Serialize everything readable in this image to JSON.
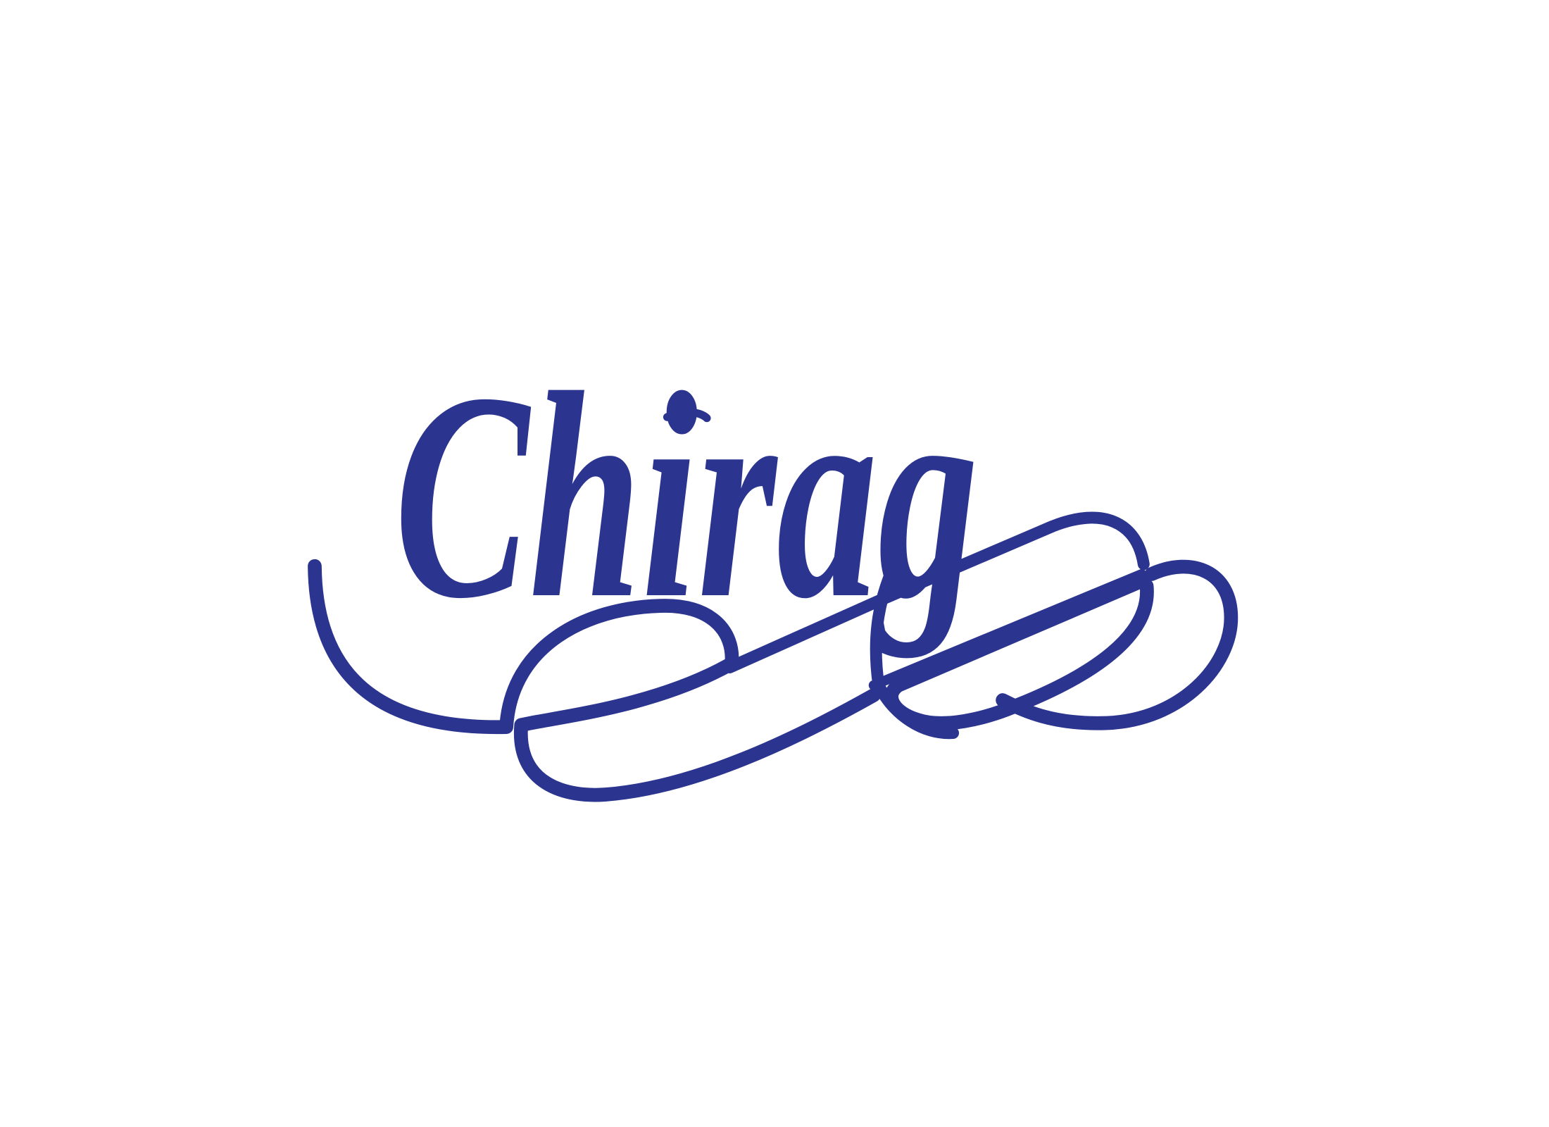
{
  "logo": {
    "text": "Chirag"
  }
}
